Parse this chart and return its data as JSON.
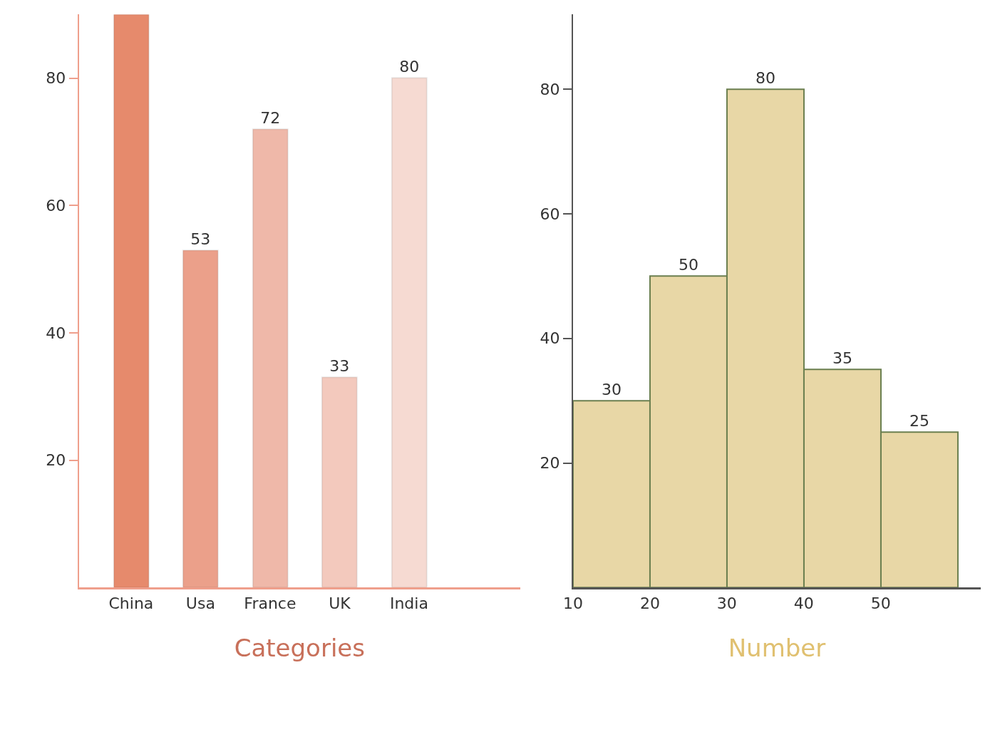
{
  "chart_data": [
    {
      "type": "bar",
      "xlabel": "Categories",
      "categories": [
        "China",
        "Usa",
        "France",
        "UK",
        "India"
      ],
      "values": [
        90,
        53,
        72,
        33,
        80
      ],
      "colors": [
        "#e68a6c",
        "#eba08a",
        "#efb8a9",
        "#f3c9bd",
        "#f6dad2"
      ],
      "value_labels": [
        null,
        "53",
        "72",
        "33",
        "80"
      ],
      "ylim": [
        0,
        90
      ],
      "yticks": [
        20,
        40,
        60,
        80
      ]
    },
    {
      "type": "histogram",
      "xlabel": "Number",
      "bins": [
        10,
        20,
        30,
        40,
        50,
        60
      ],
      "values": [
        30,
        50,
        80,
        35,
        25
      ],
      "color": "#e8d7a6",
      "xlim": [
        10,
        63
      ],
      "xticks": [
        10,
        20,
        30,
        40,
        50
      ],
      "ylim": [
        0,
        92
      ],
      "yticks": [
        20,
        40,
        60,
        80
      ],
      "data_labels": true
    }
  ]
}
